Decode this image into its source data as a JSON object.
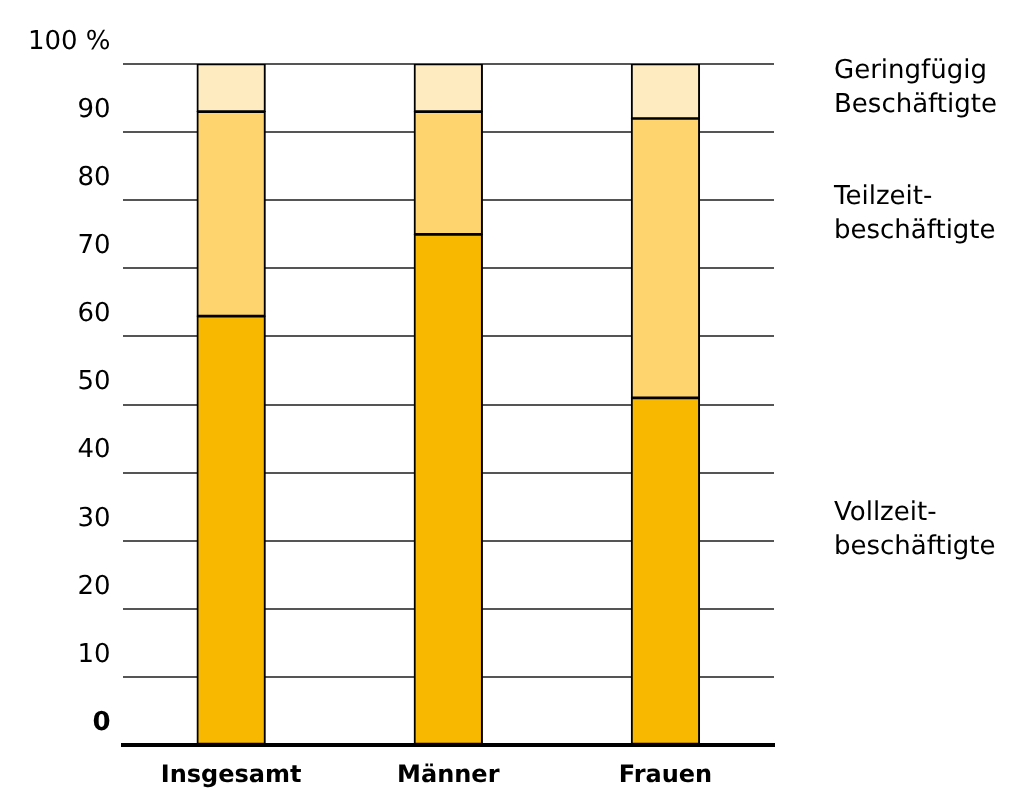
{
  "chart_data": {
    "type": "bar",
    "stacked": true,
    "categories": [
      "Insgesamt",
      "Männer",
      "Frauen"
    ],
    "series": [
      {
        "name": "Vollzeit-\nbeschäftigte",
        "color": "#f9b800",
        "values": [
          63,
          75,
          51
        ]
      },
      {
        "name": "Teilzeit-\nbeschäftigte",
        "color": "#fdd46e",
        "values": [
          30,
          18,
          41
        ]
      },
      {
        "name": "Geringfügig\nBeschäftigte",
        "color": "#feebc0",
        "values": [
          7,
          7,
          8
        ]
      }
    ],
    "ylim": [
      0,
      100
    ],
    "yticks": [
      0,
      10,
      20,
      30,
      40,
      50,
      60,
      70,
      80,
      90,
      {
        "value": 100,
        "label": "100 %"
      }
    ],
    "grid": "y",
    "legend": "right"
  }
}
